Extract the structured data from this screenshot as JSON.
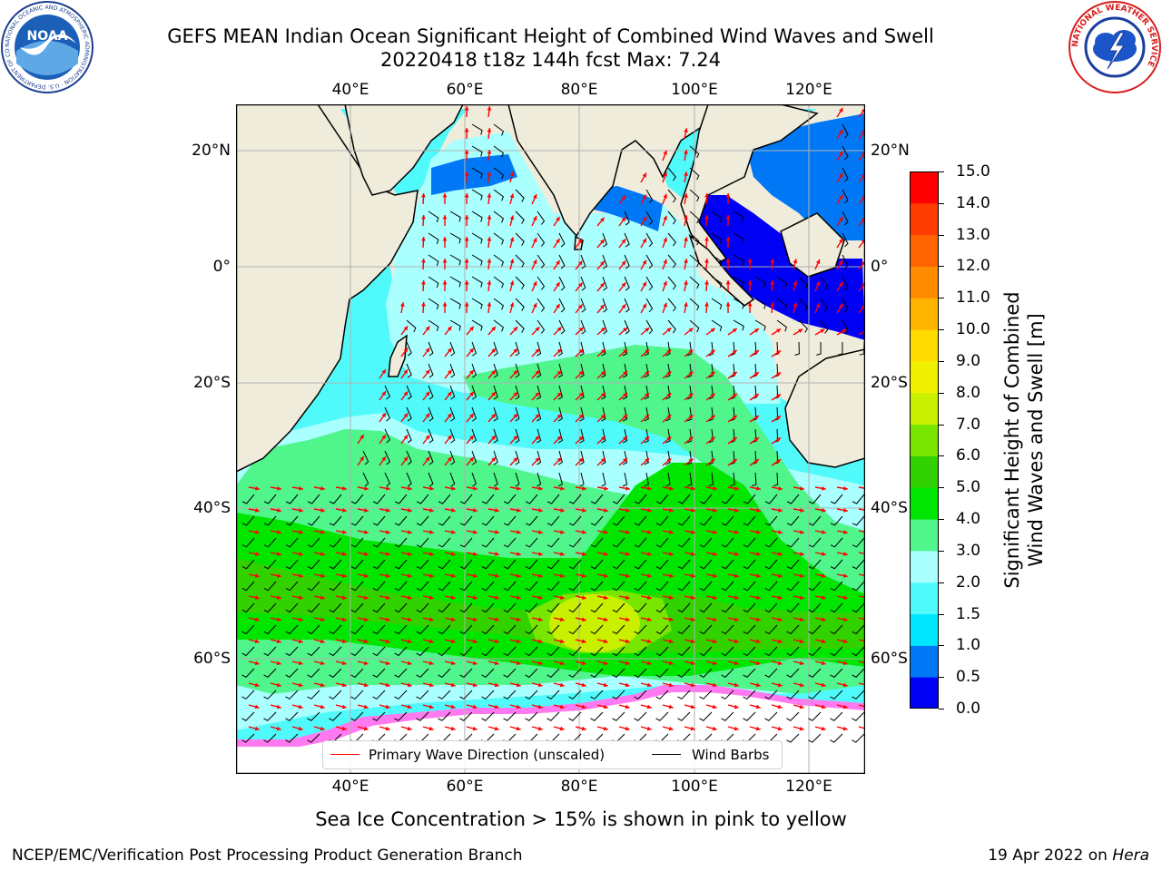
{
  "header": {
    "title_line1": "GEFS MEAN Indian Ocean Significant Height of Combined Wind Waves and Swell",
    "title_line2": "20220418 t18z 144h fcst   Max: 7.24",
    "noaa_logo_text": "NOAA",
    "noaa_ring_text": "NATIONAL OCEANIC AND ATMOSPHERIC ADMINISTRATION · U.S. DEPARTMENT OF COMMERCE",
    "nws_ring_text": "NATIONAL WEATHER SERVICE"
  },
  "map": {
    "lon_labels": [
      "40°E",
      "60°E",
      "80°E",
      "100°E",
      "120°E"
    ],
    "lat_labels": [
      "20°N",
      "0°",
      "20°S",
      "40°S",
      "60°S"
    ],
    "colors": {
      "land": "#efecdc",
      "frame": "#000000",
      "grid": "#b0b0b0",
      "wave_arrow": "#ff0000",
      "barb": "#000000"
    }
  },
  "legend": {
    "primary_wave_label": "Primary Wave Direction (unscaled)",
    "wind_barbs_label": "Wind Barbs"
  },
  "colorbar": {
    "title_line1": "Significant Height of Combined",
    "title_line2": "Wind Waves and Swell [m]",
    "levels": [
      "0.0",
      "0.5",
      "1.0",
      "1.5",
      "2.0",
      "3.0",
      "4.0",
      "5.0",
      "6.0",
      "7.0",
      "8.0",
      "9.0",
      "10.0",
      "11.0",
      "12.0",
      "13.0",
      "14.0",
      "15.0"
    ],
    "colors": [
      "#0000f5",
      "#0078f5",
      "#00e6ff",
      "#50fafa",
      "#aaffff",
      "#50f58c",
      "#00e600",
      "#32d200",
      "#78e600",
      "#c8f000",
      "#f0f000",
      "#ffdc00",
      "#ffb400",
      "#ff8c00",
      "#ff6400",
      "#ff3c00",
      "#ff0000"
    ]
  },
  "note": "Sea Ice Concentration > 15% is shown in pink to yellow",
  "footer": {
    "left": "NCEP/EMC/Verification Post Processing Product Generation Branch",
    "date": "19 Apr 2022 on ",
    "host": "Hera"
  }
}
